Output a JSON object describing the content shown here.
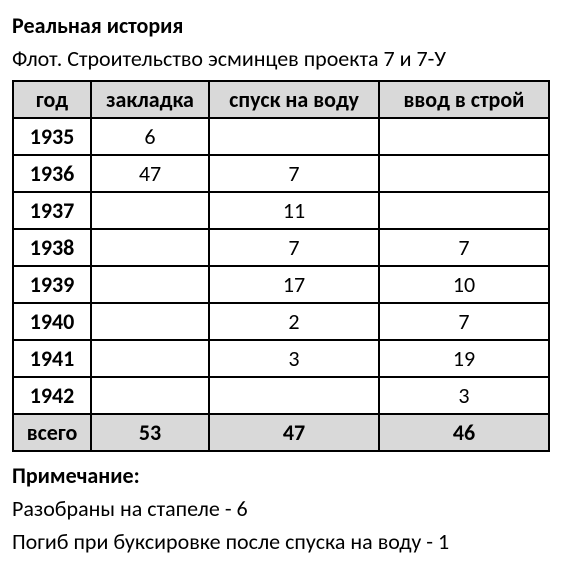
{
  "title": "Реальная история",
  "subtitle": "Флот. Строительство эсминцев проекта 7 и 7-У",
  "table": {
    "columns": [
      "год",
      "закладка",
      "спуск на воду",
      "ввод в строй"
    ],
    "rows": [
      {
        "year": "1935",
        "laid": "6",
        "launched": "",
        "commissioned": ""
      },
      {
        "year": "1936",
        "laid": "47",
        "launched": "7",
        "commissioned": ""
      },
      {
        "year": "1937",
        "laid": "",
        "launched": "11",
        "commissioned": ""
      },
      {
        "year": "1938",
        "laid": "",
        "launched": "7",
        "commissioned": "7"
      },
      {
        "year": "1939",
        "laid": "",
        "launched": "17",
        "commissioned": "10"
      },
      {
        "year": "1940",
        "laid": "",
        "launched": "2",
        "commissioned": "7"
      },
      {
        "year": "1941",
        "laid": "",
        "launched": "3",
        "commissioned": "19"
      },
      {
        "year": "1942",
        "laid": "",
        "launched": "",
        "commissioned": "3"
      }
    ],
    "total": {
      "label": "всего",
      "laid": "53",
      "launched": "47",
      "commissioned": "46"
    }
  },
  "notes": {
    "title": "Примечание:",
    "lines": [
      "Разобраны на стапеле - 6",
      "Погиб при буксировке после спуска на воду - 1"
    ]
  }
}
